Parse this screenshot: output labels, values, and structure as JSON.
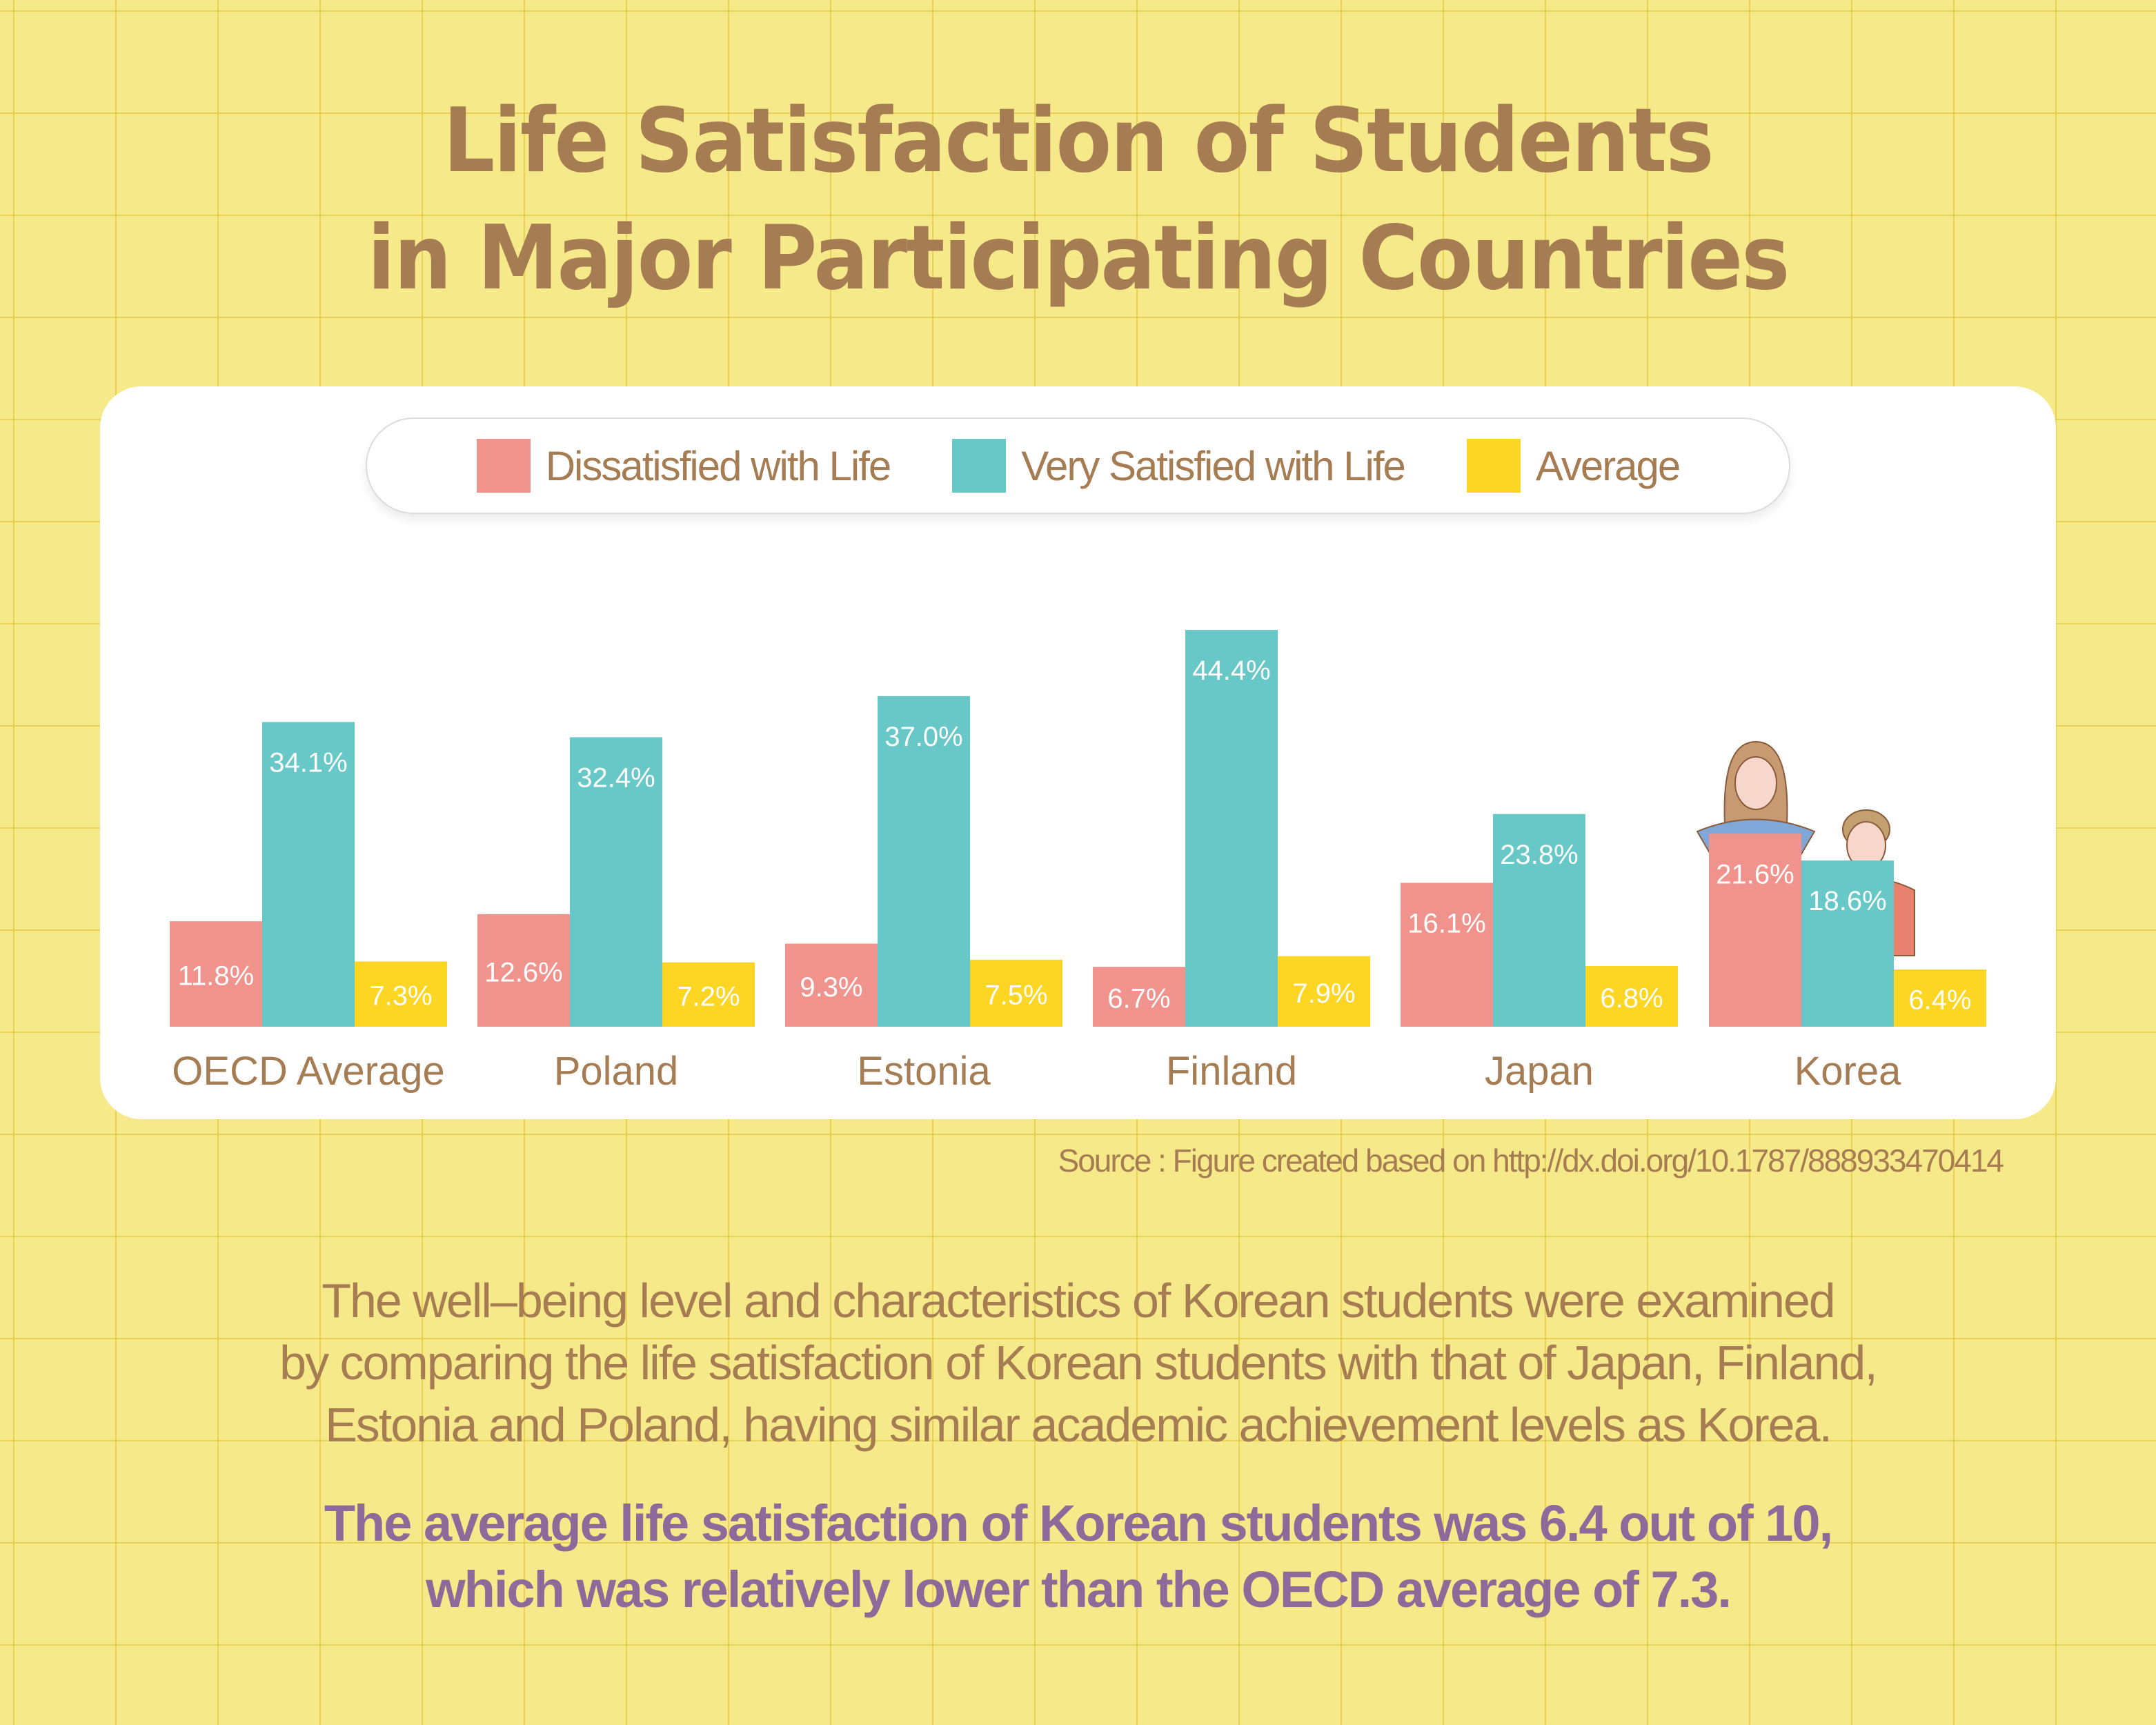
{
  "title": {
    "line1": "Life Satisfaction of Students",
    "line2": "in Major Participating Countries"
  },
  "legend": [
    {
      "label": "Dissatisfied with Life",
      "color": "#f0938c"
    },
    {
      "label": "Very Satisfied with Life",
      "color": "#68c8c8"
    },
    {
      "label": "Average",
      "color": "#fcd622"
    }
  ],
  "chart_data": {
    "type": "bar",
    "title": "Life Satisfaction of Students in Major Participating Countries",
    "xlabel": "",
    "ylabel": "",
    "ylim": [
      0,
      44.4
    ],
    "grid": false,
    "legend_position": "top-center",
    "categories": [
      "OECD Average",
      "Poland",
      "Estonia",
      "Finland",
      "Japan",
      "Korea"
    ],
    "series": [
      {
        "name": "Dissatisfied with Life",
        "color": "#f0938c",
        "values": [
          11.8,
          12.6,
          9.3,
          6.7,
          16.1,
          21.6
        ],
        "labels": [
          "11.8%",
          "12.6%",
          "9.3%",
          "6.7%",
          "16.1%",
          "21.6%"
        ]
      },
      {
        "name": "Very Satisfied with Life",
        "color": "#68c8c8",
        "values": [
          34.1,
          32.4,
          37.0,
          44.4,
          23.8,
          18.6
        ],
        "labels": [
          "34.1%",
          "32.4%",
          "37.0%",
          "44.4%",
          "23.8%",
          "18.6%"
        ]
      },
      {
        "name": "Average",
        "color": "#fcd622",
        "values": [
          7.3,
          7.2,
          7.5,
          7.9,
          6.8,
          6.4
        ],
        "labels": [
          "7.3%",
          "7.2%",
          "7.5%",
          "7.9%",
          "6.8%",
          "6.4%"
        ]
      }
    ]
  },
  "source": "Source : Figure created based on http://dx.doi.org/10.1787/888933470414",
  "description": [
    "The well–being level and characteristics of Korean students were examined",
    "by comparing the life satisfaction of Korean students with that of Japan, Finland,",
    "Estonia and Poland, having similar academic achievement levels as Korea."
  ],
  "highlight": [
    "The average life satisfaction of Korean students was 6.4 out of 10,",
    "which was relatively lower than the OECD average of 7.3."
  ],
  "illustration": "two-students-icon"
}
